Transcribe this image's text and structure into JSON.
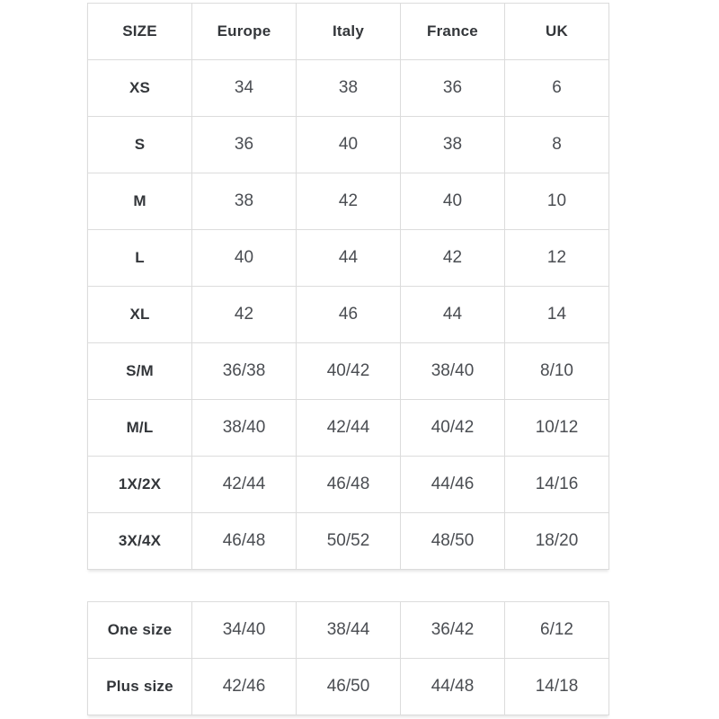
{
  "colors": {
    "background": "#ffffff",
    "border": "#dcdcdc",
    "label_text": "#33363a",
    "value_text": "#4a4d52"
  },
  "main_table": {
    "headers": [
      "SIZE",
      "Europe",
      "Italy",
      "France",
      "UK"
    ],
    "rows": [
      {
        "size": "XS",
        "values": [
          "34",
          "38",
          "36",
          "6"
        ]
      },
      {
        "size": "S",
        "values": [
          "36",
          "40",
          "38",
          "8"
        ]
      },
      {
        "size": "M",
        "values": [
          "38",
          "42",
          "40",
          "10"
        ]
      },
      {
        "size": "L",
        "values": [
          "40",
          "44",
          "42",
          "12"
        ]
      },
      {
        "size": "XL",
        "values": [
          "42",
          "46",
          "44",
          "14"
        ]
      },
      {
        "size": "S/M",
        "values": [
          "36/38",
          "40/42",
          "38/40",
          "8/10"
        ]
      },
      {
        "size": "M/L",
        "values": [
          "38/40",
          "42/44",
          "40/42",
          "10/12"
        ]
      },
      {
        "size": "1X/2X",
        "values": [
          "42/44",
          "46/48",
          "44/46",
          "14/16"
        ]
      },
      {
        "size": "3X/4X",
        "values": [
          "46/48",
          "50/52",
          "48/50",
          "18/20"
        ]
      }
    ]
  },
  "special_table": {
    "rows": [
      {
        "size": "One size",
        "values": [
          "34/40",
          "38/44",
          "36/42",
          "6/12"
        ]
      },
      {
        "size": "Plus size",
        "values": [
          "42/46",
          "46/50",
          "44/48",
          "14/18"
        ]
      }
    ]
  }
}
